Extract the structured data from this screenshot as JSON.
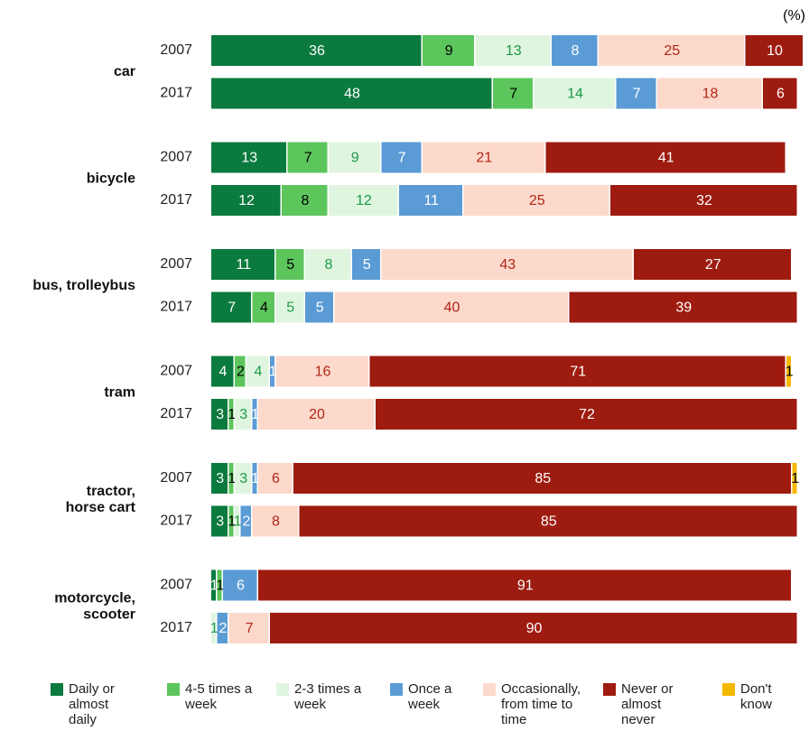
{
  "chart_data": {
    "type": "stacked-bar",
    "unit_label": "(%)",
    "groups": [
      "car",
      "bicycle",
      "bus, trolleybus",
      "tram",
      "tractor,\nhorse cart",
      "motorcycle,\nscooter"
    ],
    "categories": [
      "2007",
      "2017",
      "2007",
      "2017",
      "2007",
      "2017",
      "2007",
      "2017",
      "2007",
      "2017",
      "2007",
      "2017"
    ],
    "xlim": [
      0,
      100
    ],
    "series": [
      {
        "name": "Daily or almost daily",
        "color": "#0b7a3e",
        "label_color": "#ffffff",
        "values": [
          36,
          48,
          13,
          12,
          11,
          7,
          4,
          3,
          3,
          3,
          1,
          null
        ]
      },
      {
        "name": "4-5 times a week",
        "color": "#5cc55c",
        "label_color": "#000000",
        "values": [
          9,
          7,
          7,
          8,
          5,
          4,
          2,
          1,
          1,
          1,
          1,
          null
        ]
      },
      {
        "name": "2-3 times a week",
        "color": "#e0f5e0",
        "label_color": "#1a9a46",
        "values": [
          13,
          14,
          9,
          12,
          8,
          5,
          4,
          3,
          3,
          1,
          null,
          1
        ]
      },
      {
        "name": "Once a week",
        "color": "#5b9bd5",
        "label_color": "#ffffff",
        "values": [
          8,
          7,
          7,
          11,
          5,
          5,
          1,
          1,
          1,
          2,
          6,
          2
        ]
      },
      {
        "name": "Occasionally, from time to time",
        "color": "#fcd9cb",
        "label_color": "#b22418",
        "values": [
          25,
          18,
          21,
          25,
          43,
          40,
          16,
          20,
          6,
          8,
          null,
          7
        ]
      },
      {
        "name": "Never or almost never",
        "color": "#9e1b10",
        "label_color": "#ffffff",
        "values": [
          10,
          6,
          41,
          32,
          27,
          39,
          71,
          72,
          85,
          85,
          91,
          90
        ]
      },
      {
        "name": "Don't know",
        "color": "#f5b800",
        "label_color": "#000000",
        "values": [
          null,
          null,
          null,
          null,
          null,
          null,
          1,
          null,
          1,
          null,
          null,
          null
        ]
      }
    ]
  }
}
